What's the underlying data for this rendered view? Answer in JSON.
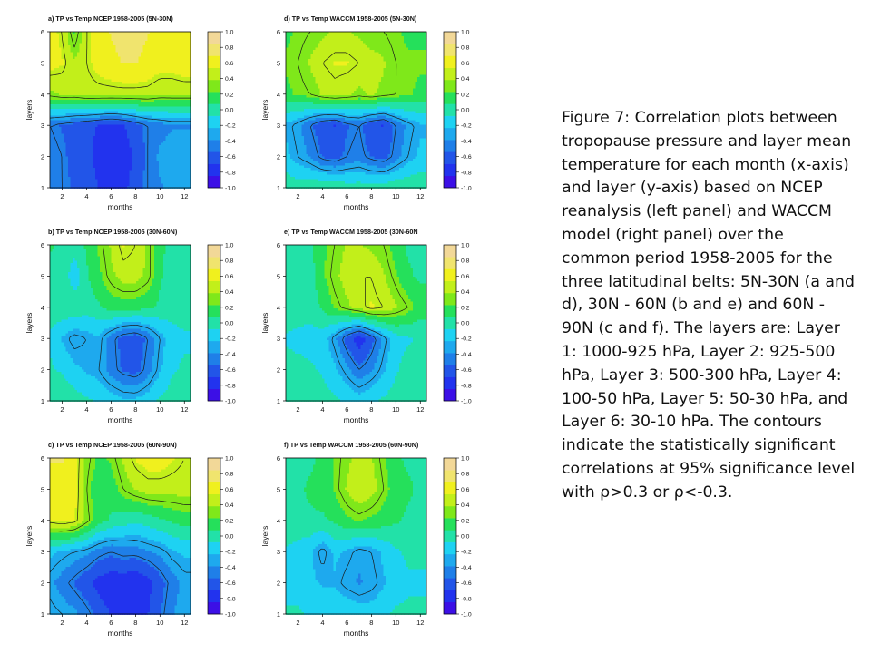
{
  "caption": "Figure 7: Correlation plots between tropopause pressure and layer mean temperature for each month (x-axis) and layer (y-axis) based on NCEP reanalysis (left panel) and WACCM model (right panel) over the common period 1958-2005 for the three latitudinal belts: 5N-30N (a and d), 30N - 60N (b and e) and 60N - 90N (c and f). The layers are: Layer 1: 1000-925 hPa, Layer 2: 925-500 hPa, Layer 3: 500-300 hPa, Layer 4: 100-50 hPa, Layer 5: 50-30 hPa, and Layer 6: 30-10 hPa. The contours indicate the statistically significant correlations at 95% significance level with ρ>0.3 or ρ<-0.3.",
  "colors": {
    "scale": [
      "#3c0fe6",
      "#2233ee",
      "#2255e8",
      "#1f7fe8",
      "#1ea9ee",
      "#1ed2f2",
      "#22e1a8",
      "#25e05b",
      "#7fe81a",
      "#c2ef1a",
      "#f0f01e",
      "#f0e46e",
      "#f2d898"
    ]
  },
  "chart_data": [
    {
      "type": "heatmap",
      "panel": "a",
      "title": "a) TP vs Temp NCEP 1958-2005 (5N-30N)",
      "xlabel": "months",
      "ylabel": "layers",
      "x": [
        1,
        2,
        3,
        4,
        5,
        6,
        7,
        8,
        9,
        10,
        11,
        12
      ],
      "y": [
        1,
        2,
        3,
        4,
        5,
        6
      ],
      "xticks": [
        "2",
        "4",
        "6",
        "8",
        "10",
        "12"
      ],
      "yticks": [
        "1",
        "2",
        "3",
        "4",
        "5",
        "6"
      ],
      "xlim": [
        1,
        12.5
      ],
      "ylim": [
        1,
        6
      ],
      "colorbar": {
        "range": [
          -1.0,
          1.0
        ],
        "ticks": [
          "1.0",
          "0.8",
          "0.6",
          "0.4",
          "0.2",
          "0.0",
          "-0.2",
          "-0.4",
          "-0.6",
          "-0.8",
          "-1.0"
        ]
      },
      "z": [
        [
          -0.45,
          -0.5,
          -0.55,
          -0.6,
          -0.7,
          -0.8,
          -0.75,
          -0.6,
          -0.5,
          -0.4,
          -0.35,
          -0.35
        ],
        [
          -0.45,
          -0.5,
          -0.6,
          -0.65,
          -0.75,
          -0.85,
          -0.8,
          -0.65,
          -0.5,
          -0.35,
          -0.3,
          -0.3
        ],
        [
          -0.5,
          -0.55,
          -0.6,
          -0.65,
          -0.7,
          -0.75,
          -0.7,
          -0.6,
          -0.5,
          -0.45,
          -0.4,
          -0.4
        ],
        [
          0.35,
          0.4,
          0.4,
          0.45,
          0.45,
          0.45,
          0.45,
          0.45,
          0.45,
          0.4,
          0.4,
          0.4
        ],
        [
          0.6,
          0.55,
          0.4,
          0.5,
          0.6,
          0.65,
          0.7,
          0.7,
          0.65,
          0.6,
          0.6,
          0.65
        ],
        [
          0.6,
          0.5,
          0.2,
          0.5,
          0.65,
          0.7,
          0.75,
          0.75,
          0.7,
          0.65,
          0.6,
          0.6
        ]
      ]
    },
    {
      "type": "heatmap",
      "panel": "d",
      "title": "d) TP vs Temp WACCM 1958-2005 (5N-30N)",
      "xlabel": "months",
      "ylabel": "layers",
      "x": [
        1,
        2,
        3,
        4,
        5,
        6,
        7,
        8,
        9,
        10,
        11,
        12
      ],
      "y": [
        1,
        2,
        3,
        4,
        5,
        6
      ],
      "xticks": [
        "2",
        "4",
        "6",
        "8",
        "10",
        "12"
      ],
      "yticks": [
        "1",
        "2",
        "3",
        "4",
        "5",
        "6"
      ],
      "xlim": [
        1,
        12.5
      ],
      "ylim": [
        1,
        6
      ],
      "colorbar": {
        "range": [
          -1.0,
          1.0
        ],
        "ticks": [
          "1.0",
          "0.8",
          "0.6",
          "0.4",
          "0.2",
          "0.0",
          "-0.2",
          "-0.4",
          "-0.6",
          "-0.8",
          "-1.0"
        ]
      },
      "z": [
        [
          0.05,
          0.0,
          0.05,
          0.05,
          0.05,
          0.0,
          0.0,
          0.0,
          0.0,
          0.05,
          0.05,
          0.05
        ],
        [
          -0.2,
          -0.3,
          -0.4,
          -0.55,
          -0.6,
          -0.5,
          -0.45,
          -0.55,
          -0.6,
          -0.45,
          -0.3,
          -0.2
        ],
        [
          -0.25,
          -0.35,
          -0.5,
          -0.65,
          -0.7,
          -0.55,
          -0.5,
          -0.65,
          -0.7,
          -0.5,
          -0.35,
          -0.25
        ],
        [
          0.2,
          0.25,
          0.3,
          0.4,
          0.45,
          0.4,
          0.35,
          0.4,
          0.35,
          0.3,
          0.25,
          0.2
        ],
        [
          0.25,
          0.3,
          0.4,
          0.5,
          0.55,
          0.55,
          0.5,
          0.45,
          0.4,
          0.3,
          0.25,
          0.25
        ],
        [
          0.2,
          0.25,
          0.3,
          0.35,
          0.4,
          0.4,
          0.35,
          0.3,
          0.3,
          0.25,
          0.2,
          0.2
        ]
      ]
    },
    {
      "type": "heatmap",
      "panel": "b",
      "title": "b) TP vs Temp NCEP 1958-2005 (30N-60N)",
      "xlabel": "months",
      "ylabel": "layers",
      "x": [
        1,
        2,
        3,
        4,
        5,
        6,
        7,
        8,
        9,
        10,
        11,
        12
      ],
      "y": [
        1,
        2,
        3,
        4,
        5,
        6
      ],
      "xticks": [
        "2",
        "4",
        "6",
        "8",
        "10",
        "12"
      ],
      "yticks": [
        "1",
        "2",
        "3",
        "4",
        "5",
        "6"
      ],
      "xlim": [
        1,
        12.5
      ],
      "ylim": [
        1,
        6
      ],
      "colorbar": {
        "range": [
          -1.0,
          1.0
        ],
        "ticks": [
          "1.0",
          "0.8",
          "0.6",
          "0.4",
          "0.2",
          "0.0",
          "-0.2",
          "-0.4",
          "-0.6",
          "-0.8",
          "-1.0"
        ]
      },
      "z": [
        [
          0.05,
          0.05,
          0.0,
          -0.05,
          -0.1,
          -0.15,
          -0.2,
          -0.2,
          -0.15,
          -0.05,
          0.0,
          0.05
        ],
        [
          -0.05,
          -0.1,
          -0.2,
          -0.25,
          -0.3,
          -0.45,
          -0.55,
          -0.6,
          -0.45,
          -0.25,
          -0.1,
          -0.05
        ],
        [
          -0.1,
          -0.25,
          -0.35,
          -0.3,
          -0.25,
          -0.45,
          -0.6,
          -0.65,
          -0.5,
          -0.3,
          -0.15,
          -0.1
        ],
        [
          0.0,
          0.05,
          0.05,
          0.0,
          0.05,
          0.15,
          0.15,
          0.15,
          0.1,
          0.05,
          0.0,
          0.0
        ],
        [
          0.0,
          0.05,
          -0.2,
          0.05,
          0.2,
          0.35,
          0.45,
          0.45,
          0.35,
          0.1,
          0.0,
          0.0
        ],
        [
          0.1,
          0.05,
          0.0,
          0.1,
          0.25,
          0.4,
          0.55,
          0.5,
          0.35,
          0.1,
          0.05,
          0.05
        ]
      ]
    },
    {
      "type": "heatmap",
      "panel": "e",
      "title": "e) TP vs Temp WACCM 1958-2005 (30N-60N",
      "xlabel": "months",
      "ylabel": "layers",
      "x": [
        1,
        2,
        3,
        4,
        5,
        6,
        7,
        8,
        9,
        10,
        11,
        12
      ],
      "y": [
        1,
        2,
        3,
        4,
        5,
        6
      ],
      "xticks": [
        "2",
        "4",
        "6",
        "8",
        "10",
        "12"
      ],
      "yticks": [
        "1",
        "2",
        "3",
        "4",
        "5",
        "6"
      ],
      "xlim": [
        1,
        12.5
      ],
      "ylim": [
        1,
        6
      ],
      "colorbar": {
        "range": [
          -1.0,
          1.0
        ],
        "ticks": [
          "1.0",
          "0.8",
          "0.6",
          "0.4",
          "0.2",
          "0.0",
          "-0.2",
          "-0.4",
          "-0.6",
          "-0.8",
          "-1.0"
        ]
      },
      "z": [
        [
          0.0,
          0.05,
          0.05,
          0.0,
          -0.05,
          -0.1,
          -0.15,
          -0.1,
          -0.05,
          0.0,
          0.05,
          0.05
        ],
        [
          0.0,
          0.0,
          -0.05,
          -0.1,
          -0.2,
          -0.35,
          -0.5,
          -0.4,
          -0.25,
          -0.1,
          0.0,
          0.0
        ],
        [
          -0.1,
          -0.15,
          -0.15,
          -0.15,
          -0.35,
          -0.6,
          -0.8,
          -0.6,
          -0.35,
          -0.15,
          -0.1,
          -0.05
        ],
        [
          0.05,
          0.05,
          0.0,
          0.1,
          0.25,
          0.35,
          0.45,
          0.55,
          0.5,
          0.4,
          0.3,
          0.15
        ],
        [
          0.05,
          0.05,
          0.0,
          0.2,
          0.35,
          0.45,
          0.5,
          0.5,
          0.4,
          0.25,
          0.1,
          0.05
        ],
        [
          0.05,
          0.05,
          0.05,
          0.2,
          0.3,
          0.4,
          0.4,
          0.35,
          0.3,
          0.15,
          0.05,
          0.05
        ]
      ]
    },
    {
      "type": "heatmap",
      "panel": "c",
      "title": "c) TP vs Temp NCEP 1958-2005 (60N-90N)",
      "xlabel": "months",
      "ylabel": "layers",
      "x": [
        1,
        2,
        3,
        4,
        5,
        6,
        7,
        8,
        9,
        10,
        11,
        12
      ],
      "y": [
        1,
        2,
        3,
        4,
        5,
        6
      ],
      "xticks": [
        "2",
        "4",
        "6",
        "8",
        "10",
        "12"
      ],
      "yticks": [
        "1",
        "2",
        "3",
        "4",
        "5",
        "6"
      ],
      "xlim": [
        1,
        12.5
      ],
      "ylim": [
        1,
        6
      ],
      "colorbar": {
        "range": [
          -1.0,
          1.0
        ],
        "ticks": [
          "1.0",
          "0.8",
          "0.6",
          "0.4",
          "0.2",
          "0.0",
          "-0.2",
          "-0.4",
          "-0.6",
          "-0.8",
          "-1.0"
        ]
      },
      "z": [
        [
          -0.25,
          -0.3,
          -0.35,
          -0.45,
          -0.6,
          -0.7,
          -0.75,
          -0.75,
          -0.7,
          -0.55,
          -0.4,
          -0.3
        ],
        [
          -0.35,
          -0.45,
          -0.55,
          -0.65,
          -0.75,
          -0.8,
          -0.8,
          -0.85,
          -0.75,
          -0.6,
          -0.45,
          -0.35
        ],
        [
          -0.2,
          -0.25,
          -0.3,
          -0.35,
          -0.45,
          -0.5,
          -0.45,
          -0.45,
          -0.4,
          -0.35,
          -0.25,
          -0.2
        ],
        [
          0.55,
          0.6,
          0.55,
          0.35,
          0.15,
          0.05,
          0.0,
          -0.05,
          0.0,
          0.05,
          0.1,
          0.15
        ],
        [
          0.65,
          0.65,
          0.6,
          0.3,
          0.1,
          0.15,
          0.3,
          0.4,
          0.45,
          0.45,
          0.45,
          0.45
        ],
        [
          0.7,
          0.7,
          0.6,
          0.35,
          0.2,
          0.25,
          0.4,
          0.55,
          0.6,
          0.6,
          0.55,
          0.5
        ]
      ]
    },
    {
      "type": "heatmap",
      "panel": "f",
      "title": "f) TP vs Temp WACCM 1958-2005 (60N-90N)",
      "xlabel": "months",
      "ylabel": "layers",
      "x": [
        1,
        2,
        3,
        4,
        5,
        6,
        7,
        8,
        9,
        10,
        11,
        12
      ],
      "y": [
        1,
        2,
        3,
        4,
        5,
        6
      ],
      "xticks": [
        "2",
        "4",
        "6",
        "8",
        "10",
        "12"
      ],
      "yticks": [
        "1",
        "2",
        "3",
        "4",
        "5",
        "6"
      ],
      "xlim": [
        1,
        12.5
      ],
      "ylim": [
        1,
        6
      ],
      "colorbar": {
        "range": [
          -1.0,
          1.0
        ],
        "ticks": [
          "1.0",
          "0.8",
          "0.6",
          "0.4",
          "0.2",
          "0.0",
          "-0.2",
          "-0.4",
          "-0.6",
          "-0.8",
          "-1.0"
        ]
      },
      "z": [
        [
          -0.05,
          -0.05,
          -0.1,
          -0.1,
          -0.1,
          -0.1,
          -0.15,
          -0.15,
          -0.1,
          -0.05,
          -0.05,
          -0.05
        ],
        [
          -0.15,
          -0.15,
          -0.2,
          -0.25,
          -0.25,
          -0.35,
          -0.4,
          -0.35,
          -0.25,
          -0.15,
          -0.1,
          -0.1
        ],
        [
          -0.1,
          -0.15,
          -0.2,
          -0.35,
          -0.2,
          -0.25,
          -0.35,
          -0.3,
          -0.2,
          -0.1,
          -0.05,
          -0.05
        ],
        [
          0.05,
          0.05,
          0.05,
          0.05,
          0.1,
          0.2,
          0.25,
          0.2,
          0.15,
          0.1,
          0.05,
          0.05
        ],
        [
          0.05,
          0.05,
          0.1,
          0.15,
          0.25,
          0.4,
          0.5,
          0.45,
          0.3,
          0.15,
          0.1,
          0.05
        ],
        [
          0.05,
          0.05,
          0.05,
          0.1,
          0.25,
          0.35,
          0.45,
          0.4,
          0.25,
          0.1,
          0.05,
          0.05
        ]
      ]
    }
  ]
}
